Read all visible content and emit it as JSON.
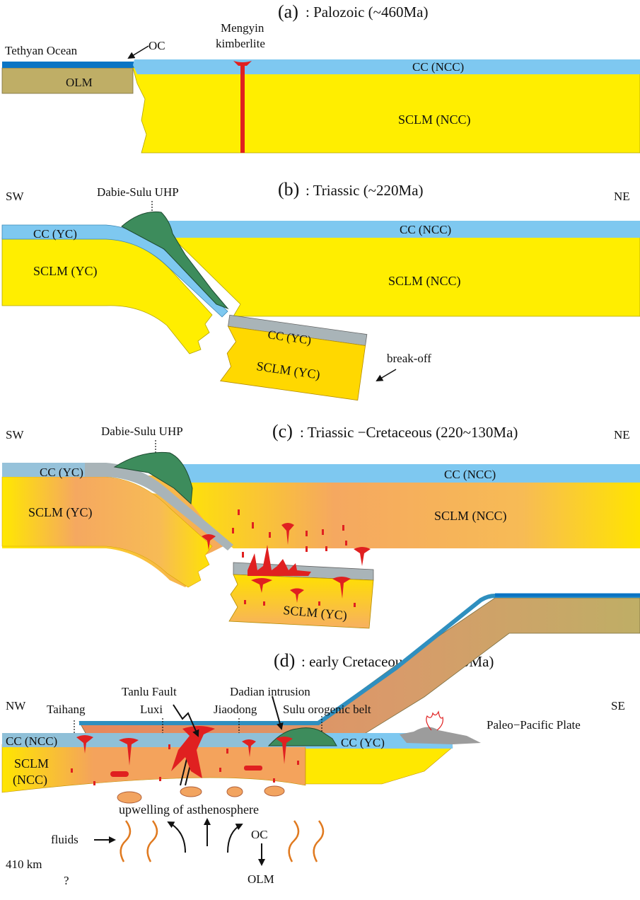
{
  "panel_a": {
    "letter": "(a)",
    "title": ": Palozoic (~460Ma)",
    "tethyan": "Tethyan Ocean",
    "oc": "OC",
    "mengyin_1": "Mengyin",
    "mengyin_2": "kimberlite",
    "cc_ncc": "CC (NCC)",
    "olm": "OLM",
    "sclm_ncc": "SCLM (NCC)"
  },
  "panel_b": {
    "letter": "(b)",
    "title": ": Triassic (~220Ma)",
    "sw": "SW",
    "ne": "NE",
    "uhp": "Dabie-Sulu UHP",
    "cc_yc": "CC (YC)",
    "cc_ncc": "CC (NCC)",
    "sclm_yc": "SCLM (YC)",
    "sclm_ncc": "SCLM (NCC)",
    "cc_yc_slab": "CC (YC)",
    "sclm_yc_slab": "SCLM (YC)",
    "breakoff": "break-off"
  },
  "panel_c": {
    "letter": "(c)",
    "title": ": Triassic −Cretaceous  (220~130Ma)",
    "sw": "SW",
    "ne": "NE",
    "uhp": "Dabie-Sulu UHP",
    "cc_yc": "CC (YC)",
    "cc_ncc": "CC (NCC)",
    "sclm_yc": "SCLM (YC)",
    "sclm_ncc": "SCLM (NCC)",
    "sclm_yc_slab": "SCLM (YC)"
  },
  "panel_d": {
    "letter": "(d)",
    "title": ": early  Cretaceous  (130~110Ma)",
    "tanlu": "Tanlu Fault",
    "dadian": "Dadian intrusion",
    "nw": "NW",
    "taihang": "Taihang",
    "luxi": "Luxi",
    "jiaodong": "Jiaodong",
    "sulu": "Sulu  orogenic belt",
    "se": "SE",
    "paleo": "Paleo−Pacific Plate",
    "cc_ncc": "CC (NCC)",
    "cc_yc": "CC (YC)",
    "sclm_1": "SCLM",
    "sclm_2": "(NCC)",
    "upwelling": "upwelling of asthenosphere",
    "fluids": "fluids",
    "oc": "OC",
    "depth": "410 km",
    "question": "?",
    "olm": "OLM"
  },
  "colors": {
    "ocean_blue": "#0077cc",
    "crust_blue": "#7ec8f0",
    "sclm_yellow": "#ffee00",
    "olm_khaki": "#bfae66",
    "magma_red": "#e02020",
    "uhp_green": "#3d8c5c",
    "heated_orange": "#f2a460",
    "gray_crust": "#a9b4b8"
  }
}
